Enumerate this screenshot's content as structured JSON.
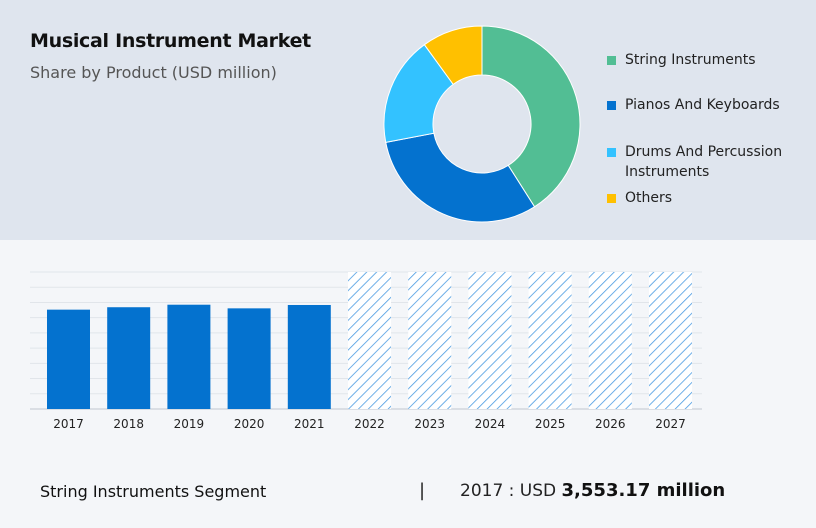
{
  "header": {
    "title": "Musical Instrument Market",
    "subtitle": "Share by Product (USD million)"
  },
  "colors": {
    "header_bg": "#dfe5ee",
    "page_bg": "#f4f6f9",
    "actual_bar": "#0472cf",
    "forecast_hatch": "#4a9be2"
  },
  "chart_data": [
    {
      "type": "pie",
      "donut": true,
      "slices": [
        {
          "label": "String Instruments",
          "value": 41,
          "color": "#52be94"
        },
        {
          "label": "Pianos And Keyboards",
          "value": 31,
          "color": "#0472cf"
        },
        {
          "label": "Drums And Percussion Instruments",
          "value": 18,
          "color": "#33c2ff"
        },
        {
          "label": "Others",
          "value": 10,
          "color": "#ffc000"
        }
      ],
      "legend_position": "right"
    },
    {
      "type": "bar",
      "categories": [
        "2017",
        "2018",
        "2019",
        "2020",
        "2021",
        "2022",
        "2023",
        "2024",
        "2025",
        "2026",
        "2027"
      ],
      "values": [
        3553.17,
        3640,
        3730,
        3600,
        3720,
        null,
        null,
        null,
        null,
        null,
        null
      ],
      "forecast": [
        false,
        false,
        false,
        false,
        false,
        true,
        true,
        true,
        true,
        true,
        true
      ],
      "ylim": [
        0,
        4900
      ],
      "grid": true
    }
  ],
  "footer": {
    "segment_label": "String Instruments Segment",
    "divider": "|",
    "value_prefix": "2017 : USD",
    "value": "3,553.17 million"
  }
}
